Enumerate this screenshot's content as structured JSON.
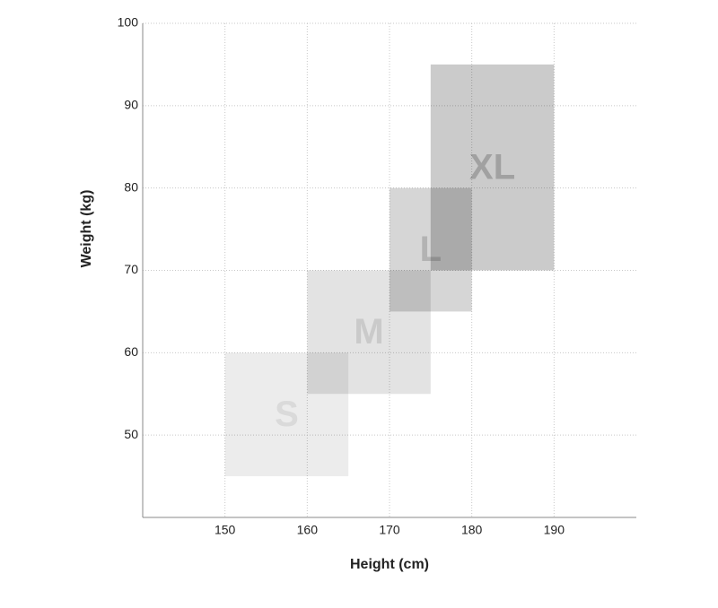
{
  "chart_data": {
    "type": "range-box",
    "x_label": "Height (cm)",
    "y_label": "Weight (kg)",
    "xlim": [
      140,
      200
    ],
    "xticks": [
      150,
      160,
      170,
      180,
      190
    ],
    "ylim": [
      40,
      100
    ],
    "yticks": [
      50,
      60,
      70,
      80,
      90,
      100
    ],
    "grid": true,
    "series": [
      {
        "name": "S",
        "color": "#ececec",
        "x": [
          150,
          165
        ],
        "y": [
          45,
          60
        ]
      },
      {
        "name": "M",
        "color": "#e3e3e3",
        "x": [
          160,
          175
        ],
        "y": [
          55,
          70
        ]
      },
      {
        "name": "L",
        "color": "#d6d6d6",
        "x": [
          170,
          180
        ],
        "y": [
          65,
          80
        ]
      },
      {
        "name": "XL",
        "color": "#cbcbcb",
        "x": [
          175,
          190
        ],
        "y": [
          70,
          95
        ]
      }
    ]
  }
}
